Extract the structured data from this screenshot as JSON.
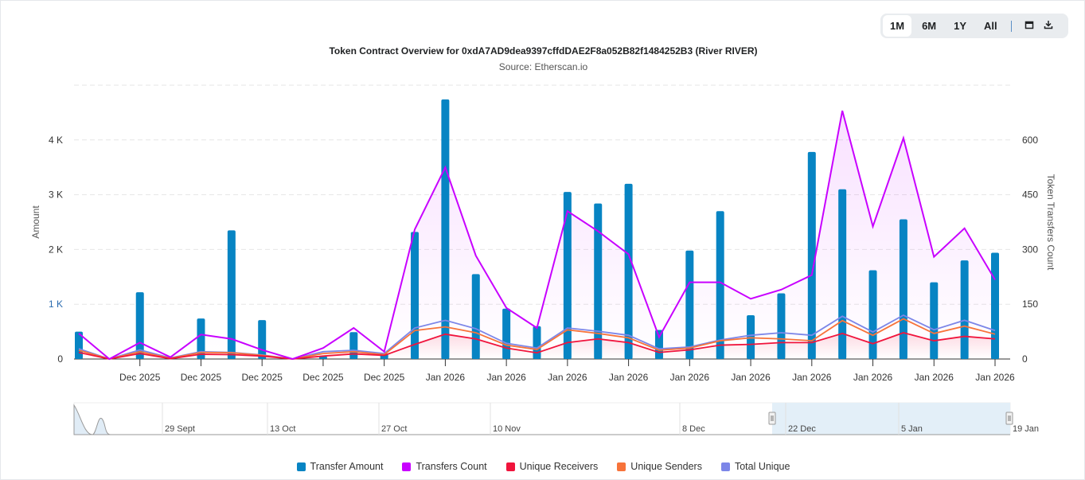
{
  "toolbar": {
    "buttons": [
      "1M",
      "6M",
      "1Y",
      "All"
    ],
    "active": "1M",
    "calendar_icon": "calendar-icon",
    "download_icon": "download-icon"
  },
  "chart_data": {
    "type": "bar+line",
    "title": "Token Contract Overview for 0xdA7AD9dea9397cffdDAE2F8a052B82f1484252B3 (River RIVER)",
    "subtitle": "Source: Etherscan.io",
    "ylabel_left": "Amount",
    "ylabel_right": "Token Transfers Count",
    "ylim_left": [
      0,
      5000
    ],
    "ylim_right": [
      0,
      750
    ],
    "left_ticks": [
      "0",
      "1 K",
      "2 K",
      "3 K",
      "4 K"
    ],
    "right_ticks": [
      "0",
      "150",
      "300",
      "450",
      "600"
    ],
    "grid": true,
    "legend_position": "bottom",
    "categories": [
      "",
      "",
      "Dec 2025",
      "",
      "Dec 2025",
      "",
      "Dec 2025",
      "",
      "Dec 2025",
      "",
      "Dec 2025",
      "",
      "Jan 2026",
      "",
      "Jan 2026",
      "",
      "Jan 2026",
      "",
      "Jan 2026",
      "",
      "Jan 2026",
      "",
      "Jan 2026",
      "",
      "Jan 2026",
      "",
      "Jan 2026",
      "",
      "Jan 2026",
      "",
      "Jan 2026"
    ],
    "series": [
      {
        "name": "Transfer Amount",
        "type": "bar",
        "axis": "left",
        "color": "#0784c3",
        "values": [
          500,
          0,
          1220,
          0,
          740,
          2350,
          710,
          0,
          50,
          490,
          100,
          2320,
          4740,
          1550,
          920,
          600,
          3050,
          2840,
          3200,
          530,
          1980,
          2700,
          800,
          1200,
          3780,
          3100,
          1620,
          2550,
          1400,
          1800,
          1940
        ]
      },
      {
        "name": "Transfers Count",
        "type": "line",
        "axis": "right",
        "color": "#c800ff",
        "values": [
          70,
          0,
          45,
          5,
          67,
          55,
          25,
          0,
          30,
          85,
          20,
          355,
          525,
          283,
          140,
          85,
          405,
          350,
          287,
          60,
          210,
          210,
          165,
          190,
          230,
          680,
          363,
          605,
          280,
          358,
          217
        ]
      },
      {
        "name": "Unique Receivers",
        "type": "line",
        "axis": "right",
        "color": "#f0143c",
        "values": [
          18,
          0,
          15,
          1,
          13,
          12,
          8,
          0,
          8,
          14,
          10,
          40,
          68,
          55,
          30,
          17,
          45,
          55,
          45,
          18,
          25,
          38,
          40,
          45,
          45,
          70,
          42,
          72,
          50,
          62,
          55
        ]
      },
      {
        "name": "Unique Senders",
        "type": "line",
        "axis": "right",
        "color": "#f7733a",
        "values": [
          24,
          0,
          20,
          2,
          18,
          17,
          10,
          0,
          15,
          20,
          12,
          78,
          88,
          72,
          38,
          26,
          80,
          70,
          58,
          24,
          30,
          50,
          58,
          55,
          50,
          105,
          65,
          110,
          70,
          90,
          68
        ]
      },
      {
        "name": "Total Unique",
        "type": "line",
        "axis": "right",
        "color": "#7c86e8",
        "values": [
          28,
          0,
          25,
          3,
          20,
          18,
          11,
          0,
          20,
          24,
          15,
          85,
          106,
          83,
          43,
          30,
          85,
          76,
          65,
          28,
          33,
          52,
          65,
          72,
          65,
          117,
          74,
          120,
          80,
          106,
          78
        ]
      }
    ],
    "navigator_labels": [
      "29 Sept",
      "13 Oct",
      "27 Oct",
      "10 Nov",
      "8 Dec",
      "22 Dec",
      "5 Jan",
      "19 Jan"
    ]
  }
}
